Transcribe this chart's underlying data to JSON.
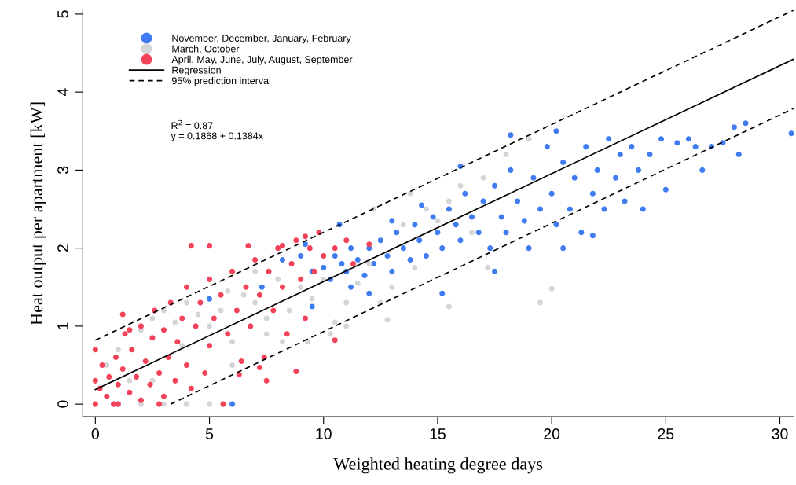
{
  "chart_data": {
    "type": "scatter",
    "xlabel": "Weighted heating degree days",
    "ylabel": "Heat output per apartment [kW]",
    "xlim": [
      -0.55,
      30.6
    ],
    "ylim": [
      -0.16,
      5.05
    ],
    "xticks": [
      0,
      5,
      10,
      15,
      20,
      25,
      30
    ],
    "yticks": [
      0,
      1,
      2,
      3,
      4,
      5
    ],
    "marker": "circle",
    "legend": "top left",
    "grid": false,
    "annotations": [
      "R$^{2}$ = 0.87",
      "y = 0.1868 + 0.1384x"
    ],
    "series": [
      {
        "name": "November, December, January, February",
        "color": "#3f7cf2",
        "x": [
          8.2,
          9.0,
          9.5,
          10,
          10.3,
          10.5,
          10.8,
          11,
          11.2,
          11.5,
          11.8,
          12,
          12.2,
          12.5,
          12.8,
          13,
          13.2,
          13.5,
          13.8,
          14,
          14.2,
          14.5,
          14.8,
          15,
          15.2,
          15.5,
          15.8,
          16,
          16.2,
          16.5,
          16.8,
          17,
          17.3,
          17.5,
          17.8,
          18,
          18.2,
          18.5,
          18.8,
          19,
          19.2,
          19.5,
          19.8,
          20,
          20.2,
          20.5,
          20.8,
          21,
          21.3,
          21.5,
          21.8,
          22,
          22.3,
          22.5,
          22.8,
          23,
          23.2,
          23.5,
          23.8,
          24,
          24.3,
          24.8,
          25,
          25.5,
          26,
          26.3,
          26.6,
          27,
          27.5,
          28,
          28.2,
          28.5,
          30.5,
          15.2,
          17.5,
          20.5,
          21.8,
          12,
          6.0,
          5.0,
          7.3,
          9.2,
          10.7,
          13,
          14.3,
          16,
          18.2,
          20.2,
          9.5,
          11.2
        ],
        "values": [
          1.85,
          1.9,
          1.7,
          1.75,
          1.6,
          1.9,
          1.8,
          1.7,
          2.0,
          1.85,
          1.65,
          2.0,
          1.8,
          2.1,
          1.9,
          1.7,
          2.2,
          2.0,
          1.85,
          2.3,
          2.1,
          1.9,
          2.4,
          2.2,
          2.0,
          2.5,
          2.3,
          2.1,
          2.7,
          2.4,
          2.2,
          2.6,
          2.0,
          2.8,
          2.4,
          2.2,
          3.0,
          2.6,
          2.35,
          2.0,
          2.9,
          2.5,
          3.3,
          2.7,
          2.3,
          3.1,
          2.5,
          2.9,
          2.2,
          3.3,
          2.7,
          3.0,
          2.5,
          3.4,
          2.9,
          3.2,
          2.6,
          3.3,
          3.0,
          2.5,
          3.2,
          3.4,
          2.75,
          3.35,
          3.4,
          3.3,
          3.0,
          3.3,
          3.35,
          3.55,
          3.2,
          3.6,
          3.47,
          1.42,
          1.7,
          2.0,
          2.16,
          1.42,
          0.0,
          1.35,
          1.5,
          2.05,
          2.3,
          2.35,
          2.55,
          3.05,
          3.45,
          3.5,
          1.25,
          1.5
        ]
      },
      {
        "name": "March, October",
        "color": "#d3d5d6",
        "x": [
          0.5,
          1.0,
          1.5,
          2.0,
          2.5,
          3.0,
          3.5,
          4.0,
          4.5,
          5.0,
          5.5,
          6.0,
          6.5,
          7.0,
          7.5,
          8.0,
          8.5,
          9.0,
          9.5,
          10.0,
          10.5,
          11,
          11.5,
          12,
          12.5,
          13,
          13.5,
          14,
          14.5,
          15,
          15.5,
          16,
          16.5,
          17,
          18,
          19,
          20,
          15.5,
          12.8,
          2.0,
          3.0,
          4.0,
          5.0,
          1.0,
          2.5,
          6.0,
          7.5,
          9.3,
          10.3,
          11.0,
          8.2,
          3.8,
          5.8,
          7.0,
          12.2,
          13.8,
          17.2,
          19.5
        ],
        "values": [
          0.5,
          0.7,
          0.3,
          0.95,
          1.1,
          1.2,
          1.05,
          1.3,
          1.15,
          1.0,
          1.2,
          0.8,
          1.4,
          1.3,
          1.1,
          1.6,
          1.2,
          1.5,
          1.35,
          1.6,
          1.05,
          1.3,
          1.55,
          1.8,
          1.3,
          1.5,
          2.3,
          1.75,
          2.5,
          2.35,
          2.6,
          2.8,
          2.2,
          2.9,
          3.2,
          3.4,
          1.48,
          1.25,
          1.08,
          0.0,
          0.0,
          0.0,
          0.0,
          0.0,
          0.3,
          0.5,
          0.9,
          0.8,
          0.9,
          1.0,
          0.8,
          0.75,
          1.45,
          1.7,
          2.5,
          2.7,
          1.75,
          1.3
        ]
      },
      {
        "name": "April, May, June, July, August, September",
        "color": "#f2435a",
        "x": [
          0,
          0,
          0,
          0.2,
          0.3,
          0.5,
          0.6,
          0.8,
          0.9,
          1.0,
          1.2,
          1.3,
          1.5,
          1.6,
          1.8,
          2.0,
          2.0,
          2.2,
          2.4,
          2.5,
          2.6,
          2.8,
          3.0,
          3.0,
          3.2,
          3.3,
          3.5,
          3.6,
          3.8,
          4.0,
          4.0,
          4.2,
          4.4,
          4.6,
          4.8,
          5.0,
          5.0,
          5.2,
          5.5,
          5.6,
          5.8,
          6.0,
          6.2,
          6.4,
          6.6,
          6.8,
          7.0,
          7.2,
          7.4,
          7.6,
          7.8,
          8.0,
          8.2,
          8.4,
          8.6,
          8.8,
          9.0,
          9.2,
          9.4,
          9.6,
          9.8,
          10.0,
          10.5,
          11,
          11.3,
          12.0,
          4.2,
          5.0,
          6.7,
          8.2,
          9.2,
          6.3,
          7.2,
          8.8,
          10.5,
          7.5,
          1.0,
          2.8,
          1.5,
          1.2
        ],
        "values": [
          0.0,
          0.3,
          0.7,
          0.2,
          0.5,
          0.1,
          0.35,
          0.0,
          0.6,
          0.25,
          0.45,
          0.9,
          0.15,
          0.7,
          0.35,
          1.0,
          0.05,
          0.55,
          0.25,
          0.85,
          1.2,
          0.4,
          0.1,
          0.95,
          0.6,
          1.3,
          0.3,
          0.8,
          1.1,
          0.5,
          1.5,
          0.2,
          1.0,
          1.3,
          0.4,
          1.6,
          0.75,
          1.1,
          1.4,
          0.0,
          0.9,
          1.7,
          1.2,
          0.55,
          1.5,
          1.0,
          1.85,
          1.4,
          0.6,
          1.7,
          1.2,
          2.0,
          1.5,
          0.9,
          1.8,
          2.1,
          1.6,
          1.1,
          2.0,
          1.7,
          2.2,
          1.9,
          2.0,
          2.1,
          1.8,
          2.05,
          2.03,
          2.03,
          2.03,
          2.03,
          2.15,
          0.38,
          0.47,
          0.42,
          0.82,
          0.3,
          0.0,
          0.0,
          0.95,
          1.15
        ]
      },
      {
        "name": "Regression",
        "type": "line",
        "marker": "none",
        "line_style": "solid",
        "color": "#000000",
        "x": [
          0,
          30.6
        ],
        "values": [
          0.1868,
          4.4218
        ]
      },
      {
        "name": "95% prediction interval",
        "type": "line",
        "marker": "none",
        "line_style": "dashed",
        "color": "#000000",
        "x": [
          0,
          30.6
        ],
        "values": [
          0.82,
          5.05
        ]
      },
      {
        "type": "line",
        "marker": "none",
        "line_style": "dashed",
        "color": "#000000",
        "x": [
          3.3,
          30.6
        ],
        "values": [
          0,
          3.79
        ]
      }
    ]
  }
}
